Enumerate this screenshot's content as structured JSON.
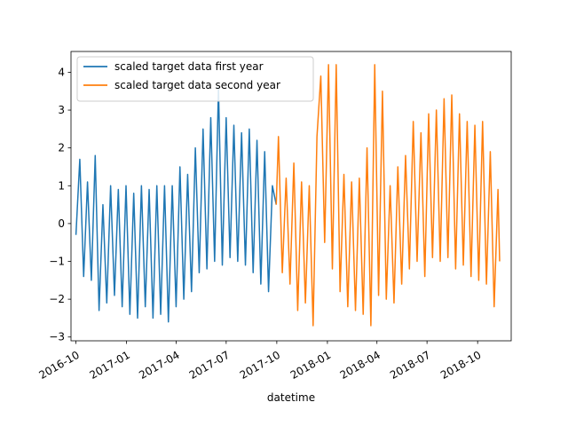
{
  "chart_data": {
    "type": "line",
    "title": "",
    "xlabel": "datetime",
    "ylabel": "",
    "grid": false,
    "legend_position": "top-left",
    "xlim": [
      "2016-09-22",
      "2018-12-01"
    ],
    "ylim": [
      -3.1,
      4.55
    ],
    "x_ticks": [
      "2016-10",
      "2017-01",
      "2017-04",
      "2017-07",
      "2017-10",
      "2018-01",
      "2018-04",
      "2018-07",
      "2018-10"
    ],
    "y_ticks": [
      -3,
      -2,
      -1,
      0,
      1,
      2,
      3,
      4
    ],
    "series": [
      {
        "name": "scaled target data first year",
        "color": "#1f77b4",
        "points": [
          [
            "2016-10-01",
            -0.3
          ],
          [
            "2016-10-08",
            1.7
          ],
          [
            "2016-10-15",
            -1.4
          ],
          [
            "2016-10-22",
            1.1
          ],
          [
            "2016-10-29",
            -1.5
          ],
          [
            "2016-11-05",
            1.8
          ],
          [
            "2016-11-12",
            -2.3
          ],
          [
            "2016-11-19",
            0.5
          ],
          [
            "2016-11-26",
            -2.1
          ],
          [
            "2016-12-03",
            1.0
          ],
          [
            "2016-12-10",
            -1.9
          ],
          [
            "2016-12-17",
            0.9
          ],
          [
            "2016-12-24",
            -2.2
          ],
          [
            "2016-12-31",
            1.0
          ],
          [
            "2017-01-07",
            -2.4
          ],
          [
            "2017-01-14",
            0.8
          ],
          [
            "2017-01-21",
            -2.5
          ],
          [
            "2017-01-28",
            1.0
          ],
          [
            "2017-02-04",
            -2.2
          ],
          [
            "2017-02-11",
            0.9
          ],
          [
            "2017-02-18",
            -2.5
          ],
          [
            "2017-02-25",
            1.0
          ],
          [
            "2017-03-04",
            -2.4
          ],
          [
            "2017-03-11",
            1.0
          ],
          [
            "2017-03-18",
            -2.6
          ],
          [
            "2017-03-25",
            1.0
          ],
          [
            "2017-04-01",
            -2.2
          ],
          [
            "2017-04-08",
            1.5
          ],
          [
            "2017-04-15",
            -2.0
          ],
          [
            "2017-04-22",
            1.3
          ],
          [
            "2017-04-29",
            -1.8
          ],
          [
            "2017-05-06",
            2.0
          ],
          [
            "2017-05-13",
            -1.3
          ],
          [
            "2017-05-20",
            2.5
          ],
          [
            "2017-05-27",
            -1.2
          ],
          [
            "2017-06-03",
            2.8
          ],
          [
            "2017-06-10",
            -1.0
          ],
          [
            "2017-06-17",
            3.6
          ],
          [
            "2017-06-24",
            -1.1
          ],
          [
            "2017-07-01",
            2.8
          ],
          [
            "2017-07-08",
            -0.9
          ],
          [
            "2017-07-15",
            2.6
          ],
          [
            "2017-07-22",
            -1.0
          ],
          [
            "2017-07-29",
            2.4
          ],
          [
            "2017-08-05",
            -1.1
          ],
          [
            "2017-08-12",
            2.5
          ],
          [
            "2017-08-19",
            -1.3
          ],
          [
            "2017-08-26",
            2.2
          ],
          [
            "2017-09-02",
            -1.6
          ],
          [
            "2017-09-09",
            1.9
          ],
          [
            "2017-09-16",
            -1.8
          ],
          [
            "2017-09-23",
            1.0
          ],
          [
            "2017-09-30",
            0.5
          ]
        ]
      },
      {
        "name": "scaled target data second year",
        "color": "#ff7f0e",
        "points": [
          [
            "2017-09-30",
            0.5
          ],
          [
            "2017-10-04",
            2.3
          ],
          [
            "2017-10-11",
            -1.3
          ],
          [
            "2017-10-18",
            1.2
          ],
          [
            "2017-10-25",
            -1.6
          ],
          [
            "2017-11-01",
            1.6
          ],
          [
            "2017-11-08",
            -2.3
          ],
          [
            "2017-11-15",
            1.1
          ],
          [
            "2017-11-22",
            -2.1
          ],
          [
            "2017-11-29",
            1.0
          ],
          [
            "2017-12-06",
            -2.7
          ],
          [
            "2017-12-13",
            2.3
          ],
          [
            "2017-12-20",
            3.9
          ],
          [
            "2017-12-27",
            -0.5
          ],
          [
            "2018-01-03",
            4.2
          ],
          [
            "2018-01-10",
            -1.2
          ],
          [
            "2018-01-17",
            4.2
          ],
          [
            "2018-01-24",
            -1.8
          ],
          [
            "2018-01-31",
            1.3
          ],
          [
            "2018-02-07",
            -2.2
          ],
          [
            "2018-02-14",
            1.1
          ],
          [
            "2018-02-21",
            -2.3
          ],
          [
            "2018-02-28",
            1.2
          ],
          [
            "2018-03-07",
            -2.4
          ],
          [
            "2018-03-14",
            2.0
          ],
          [
            "2018-03-21",
            -2.7
          ],
          [
            "2018-03-28",
            4.2
          ],
          [
            "2018-04-04",
            -1.9
          ],
          [
            "2018-04-11",
            3.5
          ],
          [
            "2018-04-18",
            -2.0
          ],
          [
            "2018-04-25",
            1.0
          ],
          [
            "2018-05-02",
            -2.1
          ],
          [
            "2018-05-09",
            1.5
          ],
          [
            "2018-05-16",
            -1.6
          ],
          [
            "2018-05-23",
            1.8
          ],
          [
            "2018-05-30",
            -1.2
          ],
          [
            "2018-06-06",
            2.7
          ],
          [
            "2018-06-13",
            -1.0
          ],
          [
            "2018-06-20",
            2.4
          ],
          [
            "2018-06-27",
            -1.4
          ],
          [
            "2018-07-04",
            2.9
          ],
          [
            "2018-07-11",
            -0.9
          ],
          [
            "2018-07-18",
            3.0
          ],
          [
            "2018-07-25",
            -1.0
          ],
          [
            "2018-08-01",
            3.3
          ],
          [
            "2018-08-08",
            -0.9
          ],
          [
            "2018-08-15",
            3.4
          ],
          [
            "2018-08-22",
            -1.2
          ],
          [
            "2018-08-29",
            2.9
          ],
          [
            "2018-09-05",
            -1.1
          ],
          [
            "2018-09-12",
            2.7
          ],
          [
            "2018-09-19",
            -1.4
          ],
          [
            "2018-09-26",
            2.6
          ],
          [
            "2018-10-03",
            -1.5
          ],
          [
            "2018-10-10",
            2.7
          ],
          [
            "2018-10-17",
            -1.6
          ],
          [
            "2018-10-24",
            1.9
          ],
          [
            "2018-10-31",
            -2.2
          ],
          [
            "2018-11-07",
            0.9
          ],
          [
            "2018-11-10",
            -1.0
          ]
        ]
      }
    ]
  }
}
